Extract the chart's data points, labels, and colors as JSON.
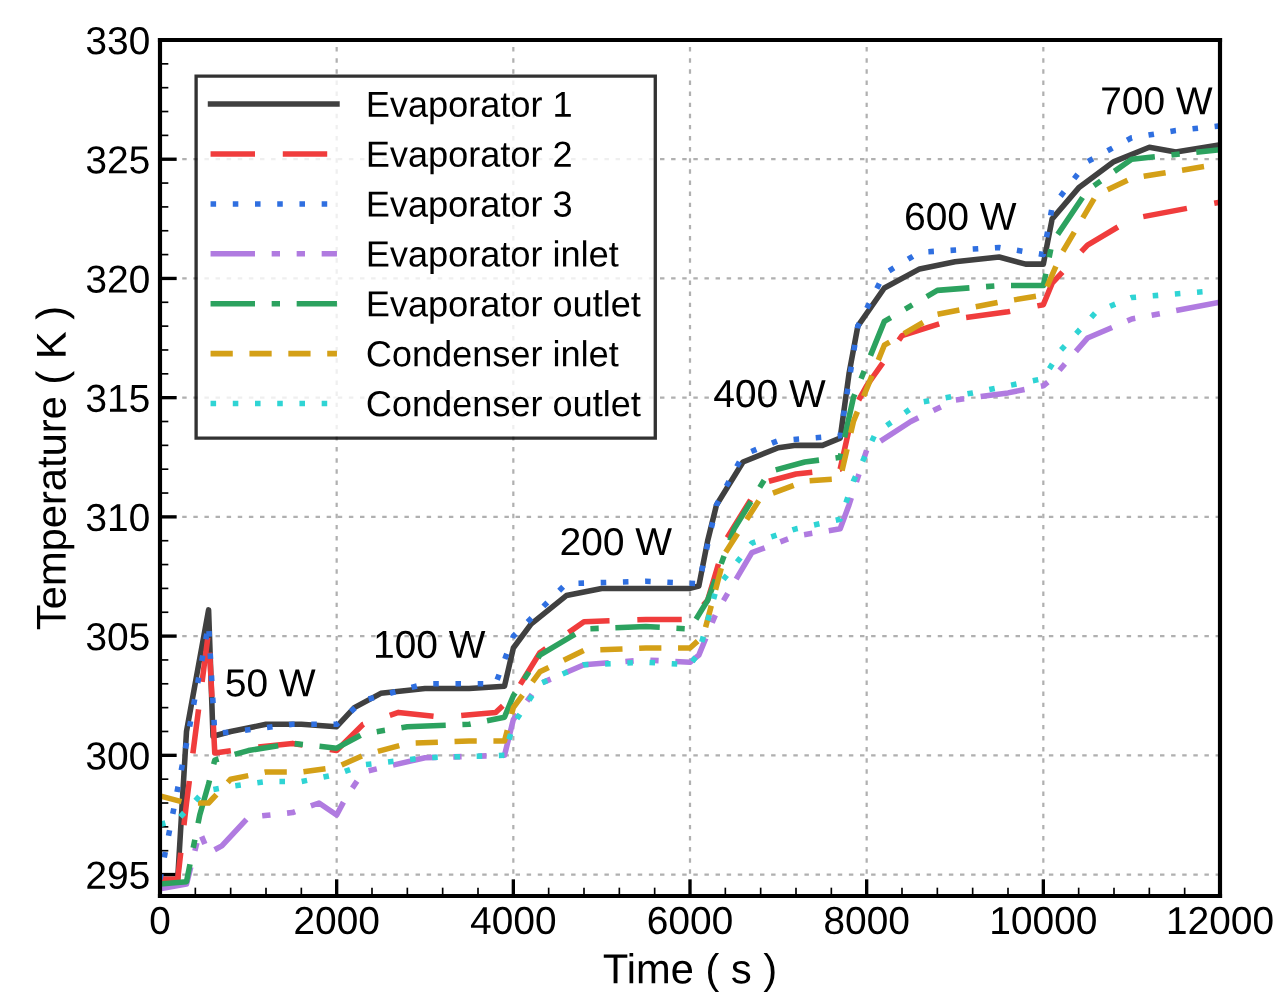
{
  "chart_data": {
    "type": "line",
    "xlabel": "Time ( s )",
    "ylabel": "Temperature ( K )",
    "xlim": [
      0,
      12000
    ],
    "ylim": [
      294.1,
      330
    ],
    "xticks": [
      0,
      2000,
      4000,
      6000,
      8000,
      10000,
      12000
    ],
    "yticks": [
      295,
      300,
      305,
      310,
      315,
      320,
      325,
      330
    ],
    "grid": true,
    "legend": "top left",
    "marker": "none",
    "series": [
      {
        "name": "Evaporator 1",
        "color": "#404040",
        "line_style": "solid",
        "x": [
          0,
          200,
          300,
          550,
          600,
          800,
          1200,
          1600,
          2000,
          2200,
          2500,
          3000,
          3500,
          3900,
          4000,
          4200,
          4600,
          5000,
          5500,
          6000,
          6100,
          6200,
          6300,
          6600,
          7000,
          7200,
          7500,
          7700,
          7800,
          7900,
          8200,
          8600,
          9000,
          9500,
          9800,
          10000,
          10100,
          10400,
          10800,
          11200,
          11500,
          12000
        ],
        "values": [
          294.8,
          294.8,
          301,
          306.1,
          300.8,
          301.0,
          301.3,
          301.3,
          301.2,
          302.0,
          302.6,
          302.8,
          302.8,
          302.9,
          304.5,
          305.5,
          306.7,
          307.0,
          307.0,
          307.0,
          307.1,
          309,
          310.5,
          312.3,
          312.9,
          313.0,
          313.0,
          313.3,
          316,
          318,
          319.6,
          320.4,
          320.7,
          320.9,
          320.6,
          320.6,
          322.5,
          323.8,
          324.9,
          325.5,
          325.3,
          325.6
        ]
      },
      {
        "name": "Evaporator 2",
        "color": "#f03c3c",
        "line_style": "dashed",
        "x": [
          0,
          200,
          300,
          550,
          620,
          1000,
          1500,
          2000,
          2300,
          2700,
          3200,
          3800,
          4000,
          4300,
          4800,
          5500,
          6000,
          6200,
          6400,
          6800,
          7200,
          7700,
          7850,
          8000,
          8400,
          9000,
          9600,
          10000,
          10100,
          10500,
          11000,
          12000
        ],
        "values": [
          294.8,
          294.8,
          298,
          305.2,
          300.1,
          300.3,
          300.5,
          300.2,
          301.3,
          301.8,
          301.6,
          301.8,
          302.5,
          304.3,
          305.6,
          305.7,
          305.7,
          306.5,
          309,
          311.4,
          311.8,
          312.0,
          314.5,
          315.5,
          317.6,
          318.3,
          318.6,
          318.9,
          319.8,
          321.4,
          322.5,
          323.2
        ]
      },
      {
        "name": "Evaporator 3",
        "color": "#2f6fe0",
        "line_style": "dotted",
        "x": [
          0,
          300,
          550,
          620,
          1500,
          2000,
          2300,
          3000,
          3800,
          4000,
          4600,
          5500,
          6100,
          6300,
          6600,
          7000,
          7700,
          7900,
          8200,
          8600,
          9500,
          10000,
          10100,
          10500,
          11000,
          11500,
          12000
        ],
        "values": [
          294.8,
          300.5,
          305.5,
          300.9,
          301.3,
          301.3,
          302.3,
          303.0,
          303.0,
          305,
          307.2,
          307.3,
          307.2,
          310.5,
          312.6,
          313.2,
          313.4,
          318,
          320.2,
          321.1,
          321.3,
          321.0,
          323,
          324.9,
          325.9,
          326.2,
          326.4
        ]
      },
      {
        "name": "Evaporator inlet",
        "color": "#b07be0",
        "line_style": "dashdotdot",
        "x": [
          0,
          300,
          450,
          550,
          700,
          1000,
          1500,
          1800,
          2000,
          2100,
          2300,
          3000,
          3900,
          4000,
          4300,
          4800,
          5500,
          6000,
          6100,
          6300,
          6700,
          7200,
          7700,
          7800,
          8000,
          8500,
          9000,
          9600,
          10000,
          10100,
          10500,
          11000,
          12000
        ],
        "values": [
          294.4,
          294.6,
          296.8,
          295.9,
          296.2,
          297.4,
          297.6,
          298.0,
          297.5,
          298.2,
          299.3,
          299.9,
          300.0,
          301.5,
          303.0,
          303.8,
          304.0,
          303.9,
          304.2,
          306,
          308.5,
          309.2,
          309.5,
          310.5,
          312.8,
          314.0,
          314.9,
          315.2,
          315.5,
          315.8,
          317.5,
          318.3,
          319.0
        ]
      },
      {
        "name": "Evaporator outlet",
        "color": "#2ca25f",
        "line_style": "dashdot",
        "x": [
          0,
          300,
          450,
          550,
          620,
          1000,
          1500,
          2000,
          2300,
          2800,
          3500,
          3900,
          4000,
          4300,
          4800,
          5500,
          6000,
          6200,
          6500,
          6900,
          7300,
          7700,
          7850,
          8200,
          8800,
          9500,
          10000,
          10100,
          10500,
          11000,
          12000
        ],
        "values": [
          294.6,
          294.7,
          297.5,
          298.8,
          299.8,
          300.2,
          300.5,
          300.3,
          300.9,
          301.2,
          301.3,
          301.6,
          302.5,
          304.2,
          305.3,
          305.4,
          305.3,
          306.5,
          309.5,
          311.9,
          312.3,
          312.5,
          315,
          318.2,
          319.5,
          319.7,
          319.7,
          321.5,
          323.7,
          325.0,
          325.4
        ]
      },
      {
        "name": "Condenser inlet",
        "color": "#d4a017",
        "line_style": "shortdash",
        "x": [
          0,
          300,
          550,
          600,
          800,
          1200,
          1600,
          2000,
          2300,
          2800,
          3500,
          3900,
          4000,
          4300,
          4800,
          5500,
          6000,
          6150,
          6400,
          6800,
          7300,
          7700,
          7850,
          8200,
          8800,
          9500,
          10000,
          10200,
          10600,
          11000,
          12000
        ],
        "values": [
          298.3,
          298,
          298.0,
          298.2,
          299.0,
          299.3,
          299.3,
          299.5,
          300.0,
          300.5,
          300.6,
          300.6,
          302.0,
          303.5,
          304.4,
          304.5,
          304.5,
          305,
          308.5,
          310.8,
          311.5,
          311.6,
          314,
          317.2,
          318.5,
          319.0,
          319.3,
          321,
          323.5,
          324.2,
          324.8
        ]
      },
      {
        "name": "Condenser outlet",
        "color": "#2fd4d4",
        "line_style": "dotted",
        "x": [
          0,
          200,
          500,
          800,
          1200,
          1600,
          2000,
          2300,
          3000,
          3900,
          4000,
          4300,
          4800,
          5500,
          6000,
          6100,
          6300,
          6700,
          7200,
          7700,
          7850,
          8100,
          8600,
          9200,
          10000,
          10200,
          10600,
          11000,
          12000
        ],
        "values": [
          297.1,
          297.3,
          298.5,
          298.7,
          298.9,
          298.9,
          299.2,
          299.6,
          299.9,
          300.0,
          301.3,
          303.0,
          303.8,
          303.9,
          303.8,
          304.3,
          307,
          308.9,
          309.5,
          309.9,
          311.5,
          313.5,
          314.8,
          315.2,
          315.8,
          317,
          318.6,
          319.2,
          319.5
        ]
      }
    ],
    "annotations": [
      "50 W",
      "100 W",
      "200 W",
      "400 W",
      "600 W",
      "700 W"
    ]
  }
}
